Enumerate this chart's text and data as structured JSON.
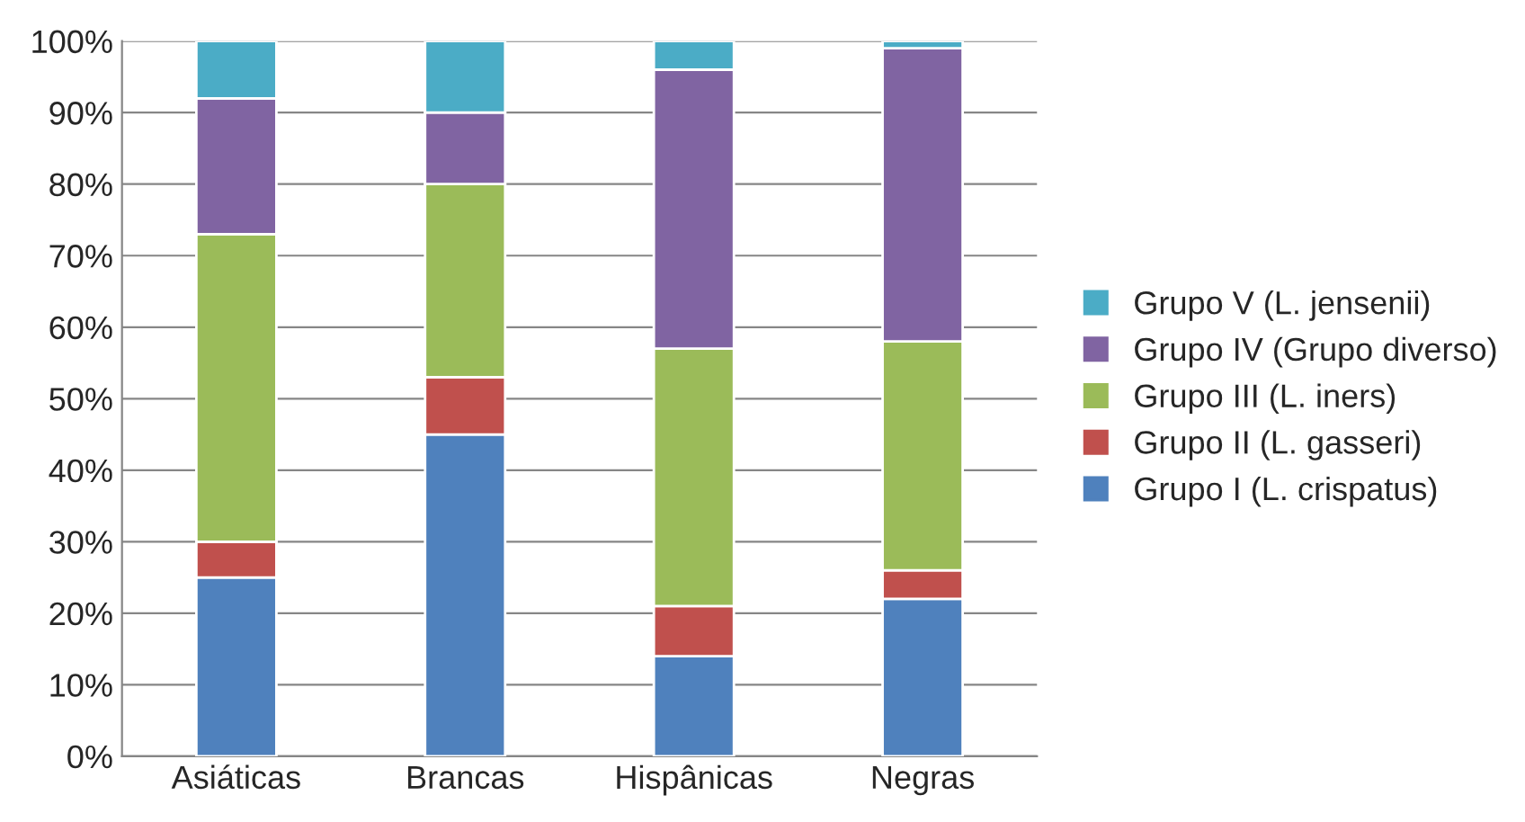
{
  "chart_data": {
    "type": "bar",
    "stacked": true,
    "categories": [
      "Asiáticas",
      "Brancas",
      "Hispânicas",
      "Negras"
    ],
    "series": [
      {
        "name": "Grupo I (L. crispatus)",
        "color": "#4f81bd",
        "values": [
          25,
          45,
          14,
          22
        ]
      },
      {
        "name": "Grupo II (L. gasseri)",
        "color": "#c0504d",
        "values": [
          5,
          8,
          7,
          4
        ]
      },
      {
        "name": "Grupo III (L. iners)",
        "color": "#9bbb59",
        "values": [
          43,
          27,
          36,
          32
        ]
      },
      {
        "name": "Grupo IV (Grupo diverso)",
        "color": "#8064a2",
        "values": [
          19,
          10,
          39,
          41
        ]
      },
      {
        "name": "Grupo V (L. jensenii)",
        "color": "#4bacc6",
        "values": [
          8,
          10,
          4,
          1
        ]
      }
    ],
    "ylim": [
      0,
      100
    ],
    "yticks": [
      {
        "value": 0,
        "label": "0%"
      },
      {
        "value": 10,
        "label": "10%"
      },
      {
        "value": 20,
        "label": "20%"
      },
      {
        "value": 30,
        "label": "30%"
      },
      {
        "value": 40,
        "label": "40%"
      },
      {
        "value": 50,
        "label": "50%"
      },
      {
        "value": 60,
        "label": "60%"
      },
      {
        "value": 70,
        "label": "70%"
      },
      {
        "value": 80,
        "label": "80%"
      },
      {
        "value": 90,
        "label": "90%"
      },
      {
        "value": 100,
        "label": "100%"
      }
    ],
    "grid": "y",
    "legend": "right"
  }
}
